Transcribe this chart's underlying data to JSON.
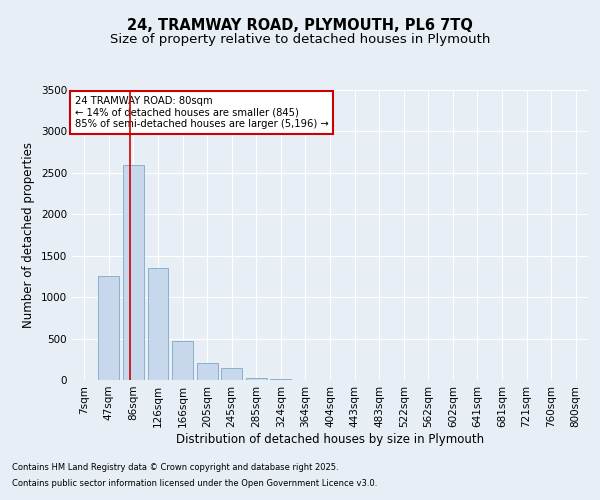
{
  "title_line1": "24, TRAMWAY ROAD, PLYMOUTH, PL6 7TQ",
  "title_line2": "Size of property relative to detached houses in Plymouth",
  "xlabel": "Distribution of detached houses by size in Plymouth",
  "ylabel": "Number of detached properties",
  "bar_labels": [
    "7sqm",
    "47sqm",
    "86sqm",
    "126sqm",
    "166sqm",
    "205sqm",
    "245sqm",
    "285sqm",
    "324sqm",
    "364sqm",
    "404sqm",
    "443sqm",
    "483sqm",
    "522sqm",
    "562sqm",
    "602sqm",
    "641sqm",
    "681sqm",
    "721sqm",
    "760sqm",
    "800sqm"
  ],
  "bar_values": [
    5,
    1250,
    2600,
    1350,
    470,
    200,
    140,
    30,
    10,
    5,
    3,
    2,
    2,
    0,
    0,
    0,
    0,
    0,
    0,
    0,
    0
  ],
  "bar_color": "#c8d8ec",
  "bar_edge_color": "#8ab0cc",
  "vline_x": 1.85,
  "vline_color": "#cc0000",
  "annotation_title": "24 TRAMWAY ROAD: 80sqm",
  "annotation_line2": "← 14% of detached houses are smaller (845)",
  "annotation_line3": "85% of semi-detached houses are larger (5,196) →",
  "annotation_box_color": "#cc0000",
  "ylim": [
    0,
    3500
  ],
  "yticks": [
    0,
    500,
    1000,
    1500,
    2000,
    2500,
    3000,
    3500
  ],
  "bg_color": "#e8eef5",
  "plot_bg_color": "#e8eef5",
  "footer_line1": "Contains HM Land Registry data © Crown copyright and database right 2025.",
  "footer_line2": "Contains public sector information licensed under the Open Government Licence v3.0.",
  "title_fontsize": 10.5,
  "subtitle_fontsize": 9.5,
  "axis_label_fontsize": 8.5,
  "tick_fontsize": 7.5,
  "footer_fontsize": 6.0
}
